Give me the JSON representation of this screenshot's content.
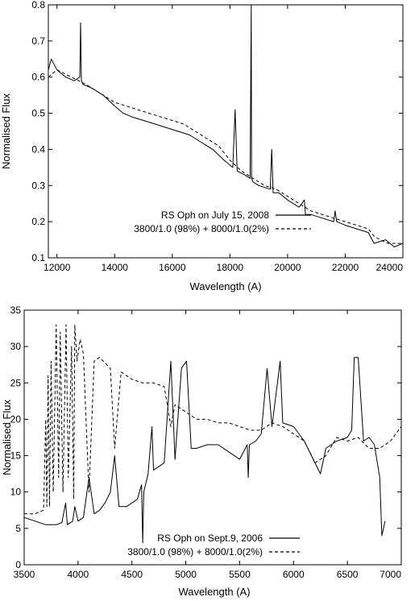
{
  "chart_data": [
    {
      "type": "line",
      "title": "",
      "xlabel": "Wavelength (A)",
      "ylabel": "Normalised Flux",
      "xlim": [
        11700,
        24000
      ],
      "ylim": [
        0.1,
        0.8
      ],
      "xticks": [
        12000,
        14000,
        16000,
        18000,
        20000,
        22000,
        24000
      ],
      "yticks": [
        0.1,
        0.2,
        0.3,
        0.4,
        0.5,
        0.6,
        0.7,
        0.8
      ],
      "grid": false,
      "legend_position": "bottom-right",
      "series": [
        {
          "name": "RS Oph on July 15, 2008",
          "style": "solid",
          "x": [
            11700,
            11800,
            12000,
            12300,
            12600,
            12790,
            12818,
            12846,
            12900,
            13200,
            13600,
            14000,
            14300,
            14600,
            15000,
            15400,
            15800,
            16200,
            16600,
            17000,
            17400,
            17800,
            18100,
            18180,
            18250,
            18500,
            18700,
            18738,
            18751,
            18800,
            19000,
            19400,
            19450,
            19500,
            19700,
            20000,
            20400,
            20580,
            20620,
            20800,
            21200,
            21600,
            21650,
            21700,
            22000,
            22400,
            22800,
            23000,
            23400,
            23700,
            24000
          ],
          "y": [
            0.62,
            0.65,
            0.62,
            0.6,
            0.59,
            0.6,
            0.75,
            0.59,
            0.58,
            0.57,
            0.55,
            0.52,
            0.5,
            0.49,
            0.48,
            0.47,
            0.46,
            0.45,
            0.44,
            0.42,
            0.4,
            0.37,
            0.35,
            0.51,
            0.34,
            0.33,
            0.32,
            0.8,
            0.32,
            0.31,
            0.3,
            0.29,
            0.4,
            0.28,
            0.28,
            0.26,
            0.24,
            0.26,
            0.22,
            0.22,
            0.21,
            0.2,
            0.23,
            0.2,
            0.19,
            0.18,
            0.17,
            0.14,
            0.15,
            0.13,
            0.14
          ]
        },
        {
          "name": "3800/1.0 (98%) + 8000/1.0(2%)",
          "style": "dashed",
          "x": [
            11700,
            12000,
            12500,
            13000,
            13600,
            14000,
            14400,
            14800,
            15200,
            15600,
            16000,
            16400,
            16800,
            17200,
            17600,
            18000,
            18400,
            18800,
            19200,
            19600,
            20000,
            20400,
            20800,
            21200,
            21600,
            22000,
            22400,
            22800,
            23000,
            23200,
            23500,
            24000
          ],
          "y": [
            0.6,
            0.62,
            0.6,
            0.58,
            0.55,
            0.53,
            0.52,
            0.51,
            0.5,
            0.49,
            0.48,
            0.47,
            0.45,
            0.43,
            0.41,
            0.37,
            0.34,
            0.32,
            0.3,
            0.29,
            0.27,
            0.25,
            0.23,
            0.22,
            0.21,
            0.2,
            0.19,
            0.18,
            0.16,
            0.15,
            0.14,
            0.14
          ]
        }
      ]
    },
    {
      "type": "line",
      "title": "",
      "xlabel": "Wavelength (A)",
      "ylabel": "Normalised Flux",
      "xlim": [
        3500,
        7000
      ],
      "ylim": [
        0,
        35
      ],
      "xticks": [
        3500,
        4000,
        4500,
        5000,
        5500,
        6000,
        6500,
        7000
      ],
      "yticks": [
        0,
        5,
        10,
        15,
        20,
        25,
        30,
        35
      ],
      "grid": false,
      "legend_position": "bottom-center",
      "series": [
        {
          "name": "RS Oph on Sept.9, 2006",
          "style": "solid",
          "x": [
            3500,
            3600,
            3700,
            3750,
            3800,
            3850,
            3885,
            3900,
            3950,
            3970,
            4000,
            4050,
            4102,
            4150,
            4200,
            4250,
            4300,
            4340,
            4380,
            4450,
            4500,
            4550,
            4590,
            4600,
            4610,
            4650,
            4686,
            4700,
            4750,
            4800,
            4861,
            4900,
            4960,
            5007,
            5050,
            5100,
            5200,
            5300,
            5400,
            5500,
            5570,
            5580,
            5590,
            5650,
            5700,
            5755,
            5800,
            5876,
            5900,
            6000,
            6100,
            6200,
            6250,
            6300,
            6400,
            6500,
            6540,
            6563,
            6600,
            6650,
            6700,
            6750,
            6800,
            6820,
            6850
          ],
          "y": [
            6.5,
            6,
            5.5,
            5.5,
            5.5,
            5.8,
            8.5,
            5.5,
            6,
            8,
            6,
            6.5,
            12,
            7,
            7.5,
            8.5,
            10,
            15,
            8,
            8,
            8.5,
            9,
            11,
            3,
            10,
            12.5,
            19,
            13,
            13.5,
            14,
            28,
            14.5,
            27,
            28,
            16,
            16,
            16.5,
            16.5,
            15.5,
            14.5,
            16.5,
            12,
            16.5,
            17,
            18,
            27,
            19,
            28,
            19.5,
            19,
            17,
            14,
            12.5,
            16,
            17,
            17.5,
            18.5,
            28.5,
            28.5,
            17,
            17.5,
            16.5,
            12,
            4,
            6
          ]
        },
        {
          "name": "3800/1.0 (98%) + 8000/1.0(2%)",
          "style": "dashed",
          "x": [
            3500,
            3600,
            3680,
            3700,
            3710,
            3722,
            3735,
            3750,
            3770,
            3797,
            3820,
            3835,
            3860,
            3889,
            3910,
            3940,
            3960,
            3970,
            3990,
            4020,
            4050,
            4101,
            4150,
            4200,
            4300,
            4340,
            4400,
            4500,
            4600,
            4700,
            4800,
            4861,
            4900,
            5000,
            5100,
            5200,
            5300,
            5400,
            5500,
            5600,
            5700,
            5800,
            5900,
            6000,
            6100,
            6200,
            6300,
            6400,
            6500,
            6600,
            6700,
            6800,
            6900,
            7000
          ],
          "y": [
            7,
            7,
            7.5,
            20,
            8,
            26,
            8,
            28,
            10,
            33,
            12,
            32,
            10,
            33,
            12,
            30,
            9,
            33,
            28,
            31,
            29,
            10,
            28,
            28.5,
            27,
            16,
            26.5,
            25.5,
            25,
            25,
            24.5,
            19,
            22,
            21,
            20,
            20,
            19.5,
            19.5,
            19,
            18.5,
            18.5,
            19.5,
            19,
            18,
            17,
            14,
            15,
            17.5,
            17,
            17.5,
            16,
            16,
            17,
            19
          ]
        }
      ]
    }
  ]
}
